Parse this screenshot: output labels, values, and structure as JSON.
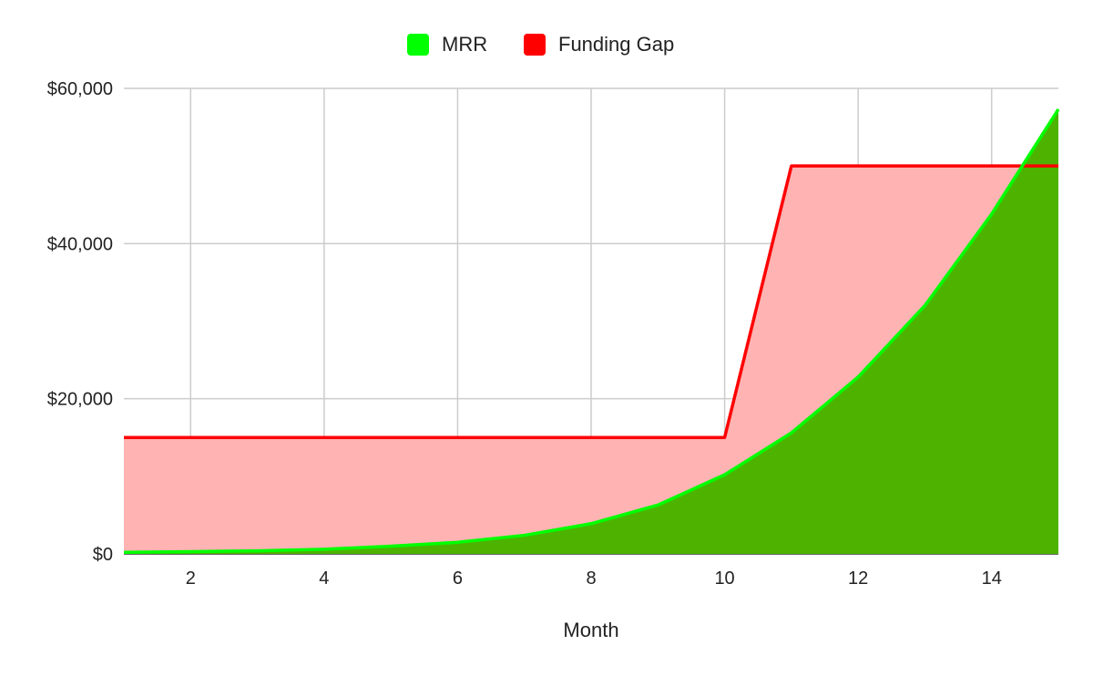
{
  "chart_data": {
    "type": "area",
    "xlabel": "Month",
    "ylabel": "",
    "x": [
      1,
      2,
      3,
      4,
      5,
      6,
      7,
      8,
      9,
      10,
      11,
      12,
      13,
      14,
      15
    ],
    "xlim": [
      1,
      15
    ],
    "ylim": [
      0,
      60000
    ],
    "x_ticks": [
      2,
      4,
      6,
      8,
      10,
      12,
      14
    ],
    "x_tick_labels": [
      "2",
      "4",
      "6",
      "8",
      "10",
      "12",
      "14"
    ],
    "y_ticks": [
      0,
      20000,
      40000,
      60000
    ],
    "y_tick_labels": [
      "$0",
      "$20,000",
      "$40,000",
      "$60,000"
    ],
    "grid": true,
    "legend": "top-center",
    "series": [
      {
        "name": "MRR",
        "fill": "#4db300",
        "line": "#00ff00",
        "legend_color": "#00ff00",
        "values": [
          200,
          300,
          400,
          600,
          1000,
          1500,
          2400,
          3900,
          6300,
          10200,
          15600,
          22800,
          32000,
          43800,
          57300
        ]
      },
      {
        "name": "Funding Gap",
        "fill": "#ffb3b3",
        "line": "#ff0000",
        "legend_color": "#ff0000",
        "values": [
          15000,
          15000,
          15000,
          15000,
          15000,
          15000,
          15000,
          15000,
          15000,
          15000,
          50000,
          50000,
          50000,
          50000,
          50000
        ]
      }
    ]
  }
}
